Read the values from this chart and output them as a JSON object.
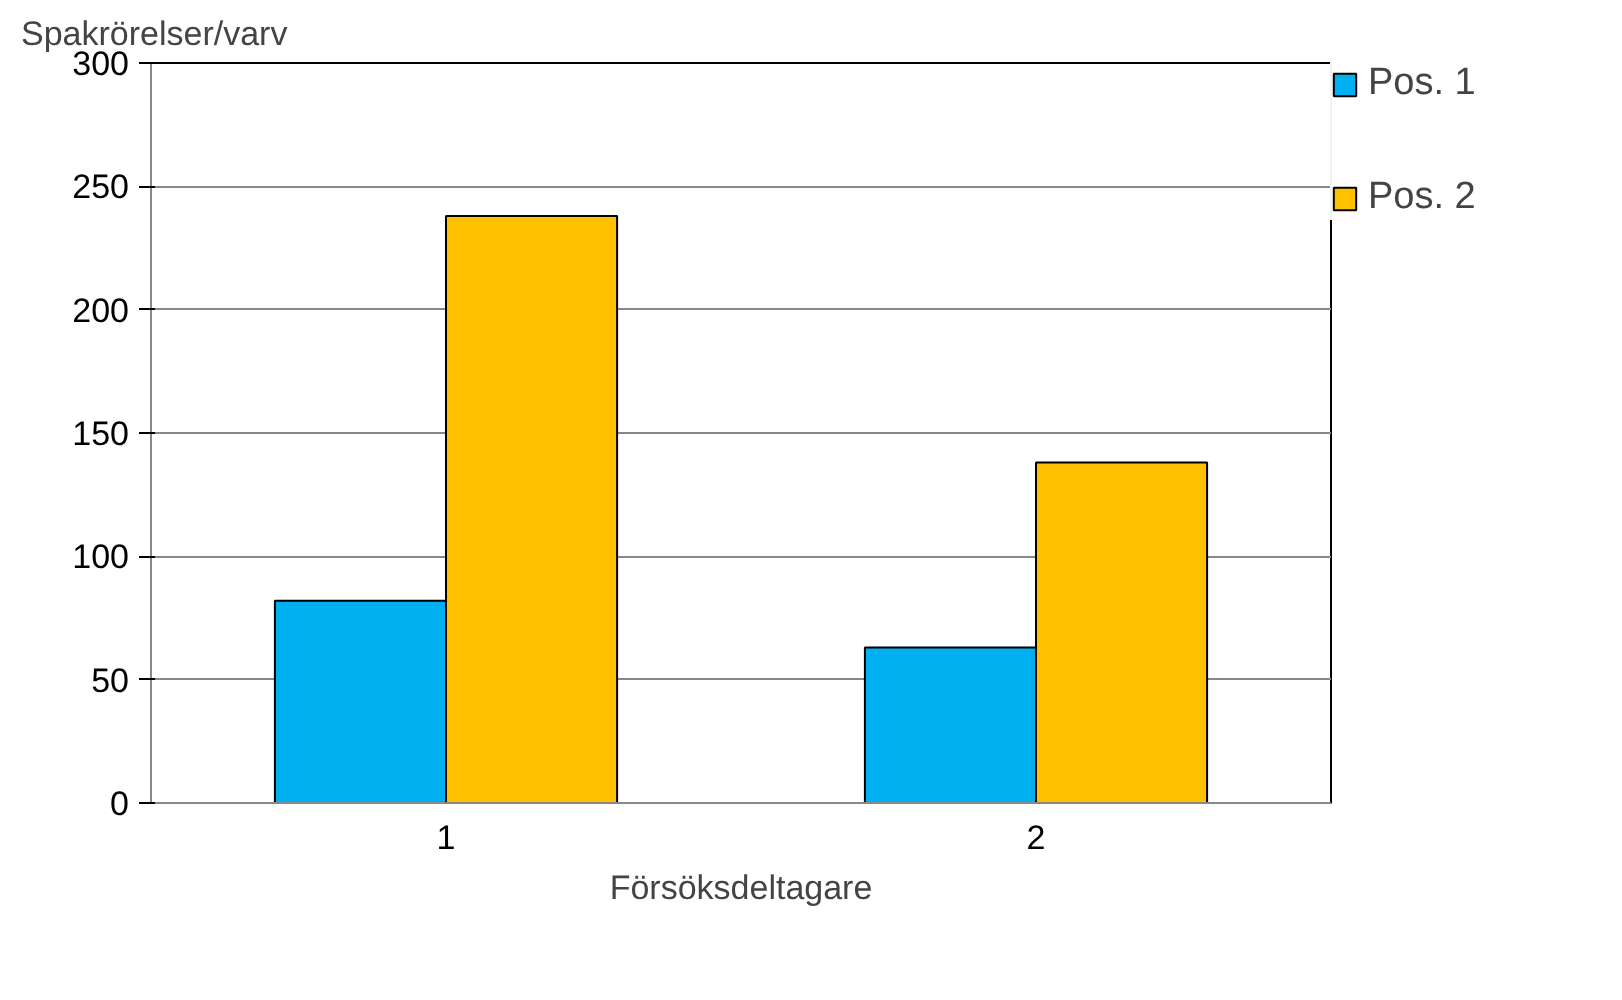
{
  "chart_data": {
    "type": "bar",
    "ylabel": "Spakrörelser/varv",
    "xlabel": "Försöksdeltagare",
    "categories": [
      "1",
      "2"
    ],
    "series": [
      {
        "name": "Pos. 1",
        "color": "#00b0f0",
        "values": [
          82,
          63
        ]
      },
      {
        "name": "Pos. 2",
        "color": "#ffc000",
        "values": [
          238,
          138
        ]
      }
    ],
    "ylim": [
      0,
      300
    ],
    "yticks": [
      0,
      50,
      100,
      150,
      200,
      250,
      300
    ],
    "grid": "y",
    "legend": "right"
  }
}
